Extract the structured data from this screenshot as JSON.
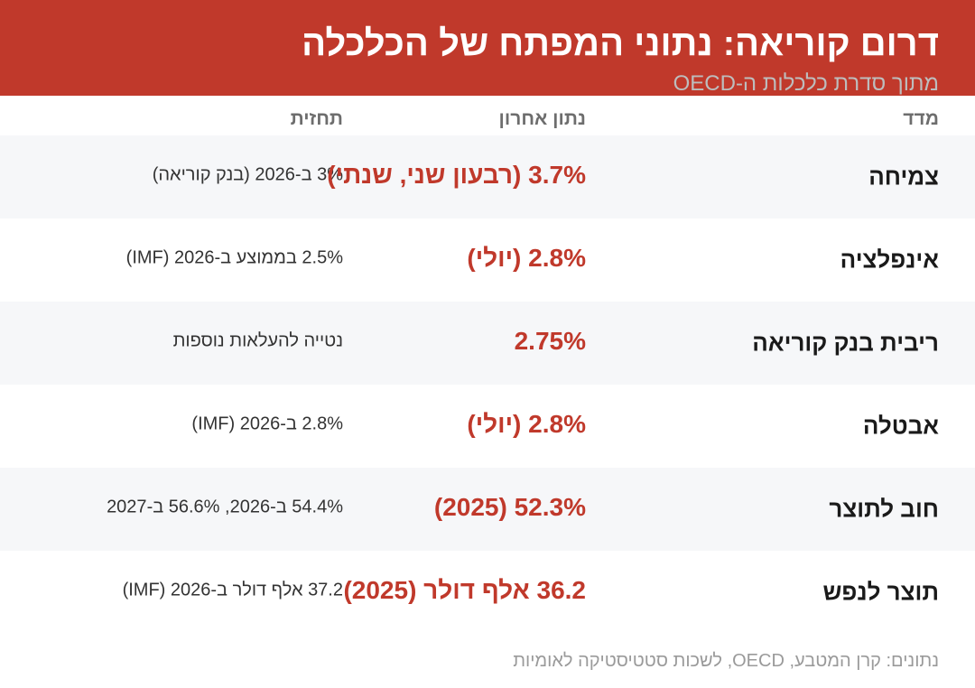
{
  "header": {
    "title": "דרום קוריאה: נתוני המפתח של הכלכלה",
    "subtitle": "מתוך סדרת כלכלות ה-OECD"
  },
  "columns": {
    "metric": "מדד",
    "latest": "נתון אחרון",
    "forecast": "תחזית"
  },
  "rows": [
    {
      "metric": "צמיחה",
      "latest": "3.7% (רבעון שני, שנתי)",
      "forecast": "3% ב-2026 (בנק קוריאה)"
    },
    {
      "metric": "אינפלציה",
      "latest": "2.8% (יולי)",
      "forecast": "2.5% בממוצע ב-2026 (IMF)"
    },
    {
      "metric": "ריבית בנק קוריאה",
      "latest": "2.75%",
      "forecast": "נטייה להעלאות נוספות"
    },
    {
      "metric": "אבטלה",
      "latest": "2.8% (יולי)",
      "forecast": "2.8% ב-2026 (IMF)"
    },
    {
      "metric": "חוב לתוצר",
      "latest": "52.3% (2025)",
      "forecast": "54.4% ב-2026, 56.6% ב-2027"
    },
    {
      "metric": "תוצר לנפש",
      "latest": "36.2 אלף דולר (2025)",
      "forecast": "37.2 אלף דולר ב-2026 (IMF)"
    }
  ],
  "footer": {
    "source": "נתונים: קרן המטבע, OECD, לשכות סטטיסטיקה לאומיות"
  },
  "colors": {
    "accent": "#c0392b",
    "row_shade": "#f6f7f9"
  }
}
